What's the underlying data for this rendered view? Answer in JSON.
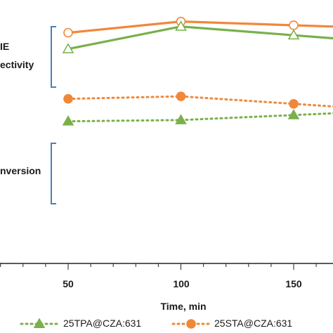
{
  "chart_data": {
    "type": "line",
    "xlabel": "Time, min",
    "x_ticks": [
      50,
      100,
      150
    ],
    "groups": [
      {
        "label_lines": [
          "IE",
          "ectivity"
        ]
      },
      {
        "label_lines": [
          "nversion"
        ]
      }
    ],
    "series": [
      {
        "name": "25STA@CZA:631",
        "group": 0,
        "style": "solid",
        "marker": "circle-open",
        "color": "#f0883a",
        "x": [
          50,
          100,
          150
        ],
        "y": [
          0.925,
          0.97,
          0.955
        ],
        "continues_right": true
      },
      {
        "name": "25TPA@CZA:631",
        "group": 0,
        "style": "solid",
        "marker": "triangle-open",
        "color": "#79b04a",
        "x": [
          50,
          100,
          150
        ],
        "y": [
          0.86,
          0.95,
          0.915
        ],
        "continues_right": true
      },
      {
        "name": "25STA@CZA:631",
        "group": 1,
        "style": "dotted",
        "marker": "circle-filled",
        "color": "#f0883a",
        "x": [
          50,
          100,
          150
        ],
        "y": [
          0.66,
          0.67,
          0.64
        ],
        "continues_right": true
      },
      {
        "name": "25TPA@CZA:631",
        "group": 1,
        "style": "dotted",
        "marker": "triangle-filled",
        "color": "#79b04a",
        "x": [
          50,
          100,
          150
        ],
        "y": [
          0.57,
          0.575,
          0.595
        ],
        "continues_right": true
      }
    ],
    "legend": {
      "placement": "bottom",
      "entries": [
        {
          "label": "25TPA@CZA:631",
          "style": "dotted",
          "marker": "triangle-filled",
          "color": "#79b04a"
        },
        {
          "label": "25STA@CZA:631",
          "style": "dotted",
          "marker": "circle-filled",
          "color": "#f0883a"
        }
      ]
    },
    "colors": {
      "bracket": "#4a7fbf",
      "axis": "#222222"
    }
  }
}
